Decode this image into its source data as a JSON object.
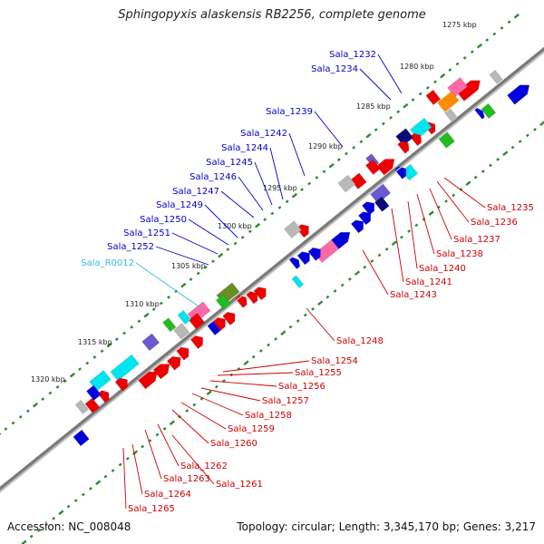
{
  "title": "Sphingopyxis alaskensis RB2256, complete genome",
  "accession": "Accession: NC_008048",
  "summary": "Topology: circular; Length: 3,345,170 bp; Genes: 3,217",
  "colors": {
    "backbone": "#7a7a7a",
    "tick_dots": "#2f8a2f",
    "label_top": "#0000cc",
    "label_bottom": "#cc0000",
    "label_rna": "#33bbee",
    "gene_red": "#ee0000",
    "gene_blue": "#0000dd",
    "gene_cyan": "#00e5ee",
    "gene_pink": "#ff69a8",
    "gene_gray": "#b8b8b8",
    "gene_olive": "#6b8e23",
    "gene_orange": "#ff8c00",
    "gene_navy": "#0a0a78",
    "gene_purple": "#6a5acd",
    "gene_green": "#22bb22"
  },
  "kbp_labels": [
    "1275 kbp",
    "1280 kbp",
    "1285 kbp",
    "1290 kbp",
    "1295 kbp",
    "1300 kbp",
    "1305 kbp",
    "1310 kbp",
    "1315 kbp",
    "1320 kbp"
  ],
  "top_labels": [
    "Sala_1232",
    "Sala_1234",
    "Sala_1239",
    "Sala_1242",
    "Sala_1244",
    "Sala_1245",
    "Sala_1246",
    "Sala_1247",
    "Sala_1249",
    "Sala_1250",
    "Sala_1251",
    "Sala_1252"
  ],
  "rna_labels": [
    "Sala_R0012"
  ],
  "bottom_labels": [
    "Sala_1235",
    "Sala_1236",
    "Sala_1237",
    "Sala_1238",
    "Sala_1240",
    "Sala_1241",
    "Sala_1243",
    "Sala_1248",
    "Sala_1254",
    "Sala_1255",
    "Sala_1256",
    "Sala_1257",
    "Sala_1258",
    "Sala_1259",
    "Sala_1260",
    "Sala_1262",
    "Sala_1263",
    "Sala_1261",
    "Sala_1264",
    "Sala_1265"
  ]
}
